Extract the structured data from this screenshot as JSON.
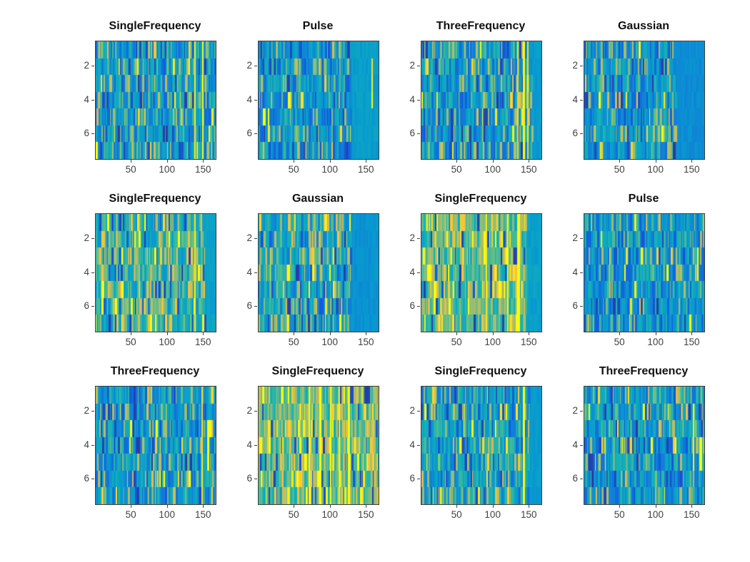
{
  "chart_data": {
    "type": "heatmap",
    "colormap": "parula",
    "grid": false,
    "legend": null,
    "x_ticks": [
      50,
      100,
      150
    ],
    "y_ticks": [
      2,
      4,
      6
    ],
    "n_rows": 7,
    "n_cols": 166,
    "x_range": [
      1,
      166
    ],
    "y_range": [
      1,
      7
    ],
    "layout": {
      "rows": 3,
      "cols": 4
    },
    "panels": [
      {
        "row": 1,
        "col": 1,
        "title": "SingleFrequency",
        "warmth": 0.3,
        "flat_tail_start": null,
        "tail_level": 0.3,
        "bright_stripes": [
          {
            "x": 148,
            "width": 2,
            "strength": 1
          },
          {
            "x": 137,
            "width": 2,
            "strength": 0.75
          }
        ]
      },
      {
        "row": 1,
        "col": 2,
        "title": "Pulse",
        "warmth": 0.28,
        "flat_tail_start": 128,
        "tail_level": 0.31,
        "bright_stripes": [
          {
            "x": 157,
            "width": 2,
            "row_span": [
              2,
              3
            ],
            "strength": 0.7
          },
          {
            "x": 157,
            "width": 2,
            "row_span": [
              4,
              4
            ],
            "strength": 1
          }
        ]
      },
      {
        "row": 1,
        "col": 3,
        "title": "ThreeFrequency",
        "warmth": 0.3,
        "flat_tail_start": 154,
        "tail_level": 0.3,
        "bright_stripes": [
          {
            "x": 133,
            "width": 2,
            "strength": 0.6
          },
          {
            "x": 141,
            "width": 3,
            "strength": 0.8
          },
          {
            "x": 147,
            "width": 2,
            "strength": 0.65
          }
        ]
      },
      {
        "row": 1,
        "col": 4,
        "title": "Gaussian",
        "warmth": 0.3,
        "flat_tail_start": 128,
        "tail_level": 0.25,
        "bright_stripes": []
      },
      {
        "row": 2,
        "col": 1,
        "title": "SingleFrequency",
        "warmth": 0.42,
        "flat_tail_start": 152,
        "tail_level": 0.33,
        "bright_stripes": [
          {
            "x": 137,
            "width": 2,
            "strength": 0.7
          }
        ]
      },
      {
        "row": 2,
        "col": 2,
        "title": "Gaussian",
        "warmth": 0.36,
        "flat_tail_start": 128,
        "tail_level": 0.27,
        "bright_stripes": []
      },
      {
        "row": 2,
        "col": 3,
        "title": "SingleFrequency",
        "warmth": 0.5,
        "flat_tail_start": 146,
        "tail_level": 0.32,
        "bright_stripes": [
          {
            "x": 133,
            "width": 4,
            "strength": 1
          },
          {
            "x": 120,
            "width": 2,
            "strength": 0.8
          },
          {
            "x": 90,
            "width": 2,
            "strength": 0.7
          }
        ]
      },
      {
        "row": 2,
        "col": 4,
        "title": "Pulse",
        "warmth": 0.28,
        "flat_tail_start": null,
        "tail_level": 0.3,
        "bright_stripes": [
          {
            "x": 157,
            "width": 2,
            "row_span": [
              3,
              4
            ],
            "strength": 1
          }
        ]
      },
      {
        "row": 3,
        "col": 1,
        "title": "ThreeFrequency",
        "warmth": 0.3,
        "flat_tail_start": null,
        "tail_level": 0.3,
        "bright_stripes": [
          {
            "x": 147,
            "width": 2,
            "strength": 0.6
          },
          {
            "x": 155,
            "width": 3,
            "row_span": [
              3,
              5
            ],
            "strength": 1
          }
        ]
      },
      {
        "row": 3,
        "col": 2,
        "title": "SingleFrequency",
        "warmth": 0.52,
        "flat_tail_start": null,
        "tail_level": 0.3,
        "bright_stripes": [
          {
            "x": 70,
            "width": 2,
            "strength": 0.9
          },
          {
            "x": 85,
            "width": 3,
            "strength": 1
          },
          {
            "x": 100,
            "width": 2,
            "strength": 0.9
          },
          {
            "x": 112,
            "width": 2,
            "strength": 0.8
          },
          {
            "x": 125,
            "width": 3,
            "strength": 1
          }
        ]
      },
      {
        "row": 3,
        "col": 3,
        "title": "SingleFrequency",
        "warmth": 0.32,
        "flat_tail_start": 150,
        "tail_level": 0.3,
        "bright_stripes": [
          {
            "x": 141,
            "width": 3,
            "strength": 0.9
          }
        ]
      },
      {
        "row": 3,
        "col": 4,
        "title": "ThreeFrequency",
        "warmth": 0.3,
        "flat_tail_start": null,
        "tail_level": 0.3,
        "bright_stripes": [
          {
            "x": 151,
            "width": 2,
            "row_span": [
              2,
              5
            ],
            "strength": 0.8
          },
          {
            "x": 160,
            "width": 4,
            "row_span": [
              4,
              5
            ],
            "strength": 1
          }
        ]
      }
    ]
  }
}
